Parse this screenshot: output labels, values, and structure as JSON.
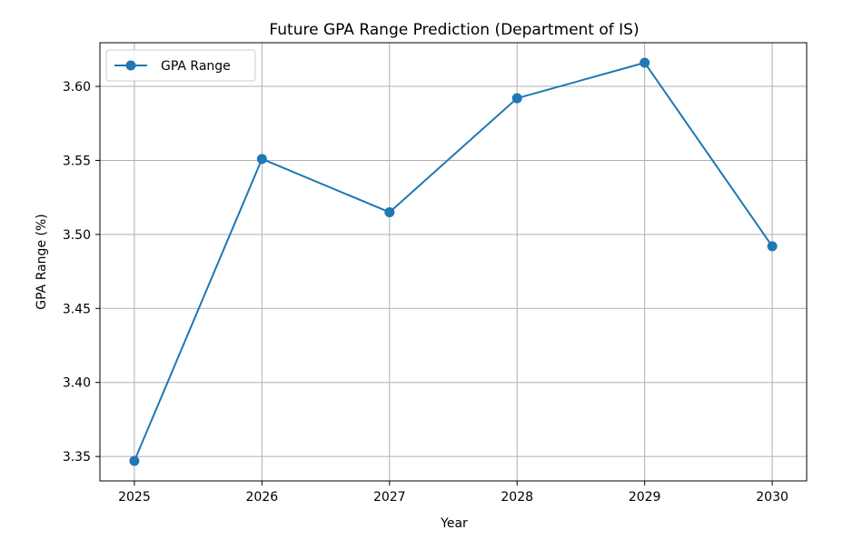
{
  "chart_data": {
    "type": "line",
    "title": "Future GPA Range Prediction (Department of IS)",
    "xlabel": "Year",
    "ylabel": "GPA Range (%)",
    "x": [
      "2025",
      "2026",
      "2027",
      "2028",
      "2029",
      "2030"
    ],
    "xlim": [
      2024.73,
      2030.27
    ],
    "ylim": [
      3.3335,
      3.6295
    ],
    "yticks": [
      "3.35",
      "3.40",
      "3.45",
      "3.50",
      "3.55",
      "3.60"
    ],
    "grid": true,
    "legend_position": "top-left",
    "series": [
      {
        "name": "GPA Range",
        "values": [
          3.347,
          3.551,
          3.515,
          3.592,
          3.616,
          3.492
        ],
        "color": "#1f77b4",
        "marker": "circle"
      }
    ]
  }
}
